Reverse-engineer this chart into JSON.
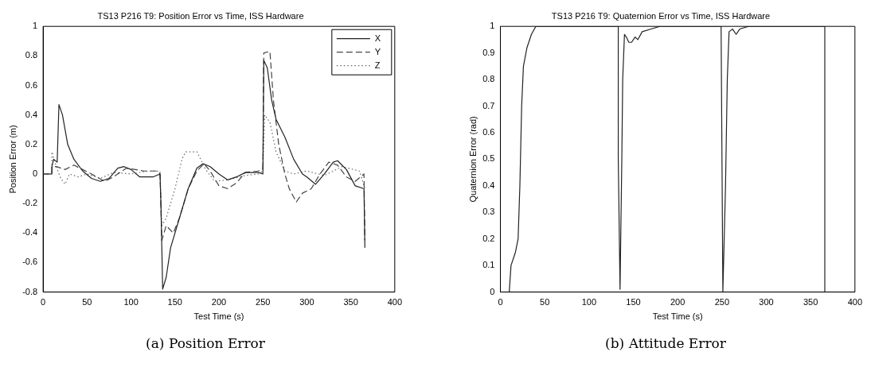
{
  "chart_data": [
    {
      "type": "line",
      "title": "TS13 P216 T9: Position Error vs Time, ISS Hardware",
      "xlabel": "Test Time (s)",
      "ylabel": "Position Error (m)",
      "annotations": [
        "(a) Position Error"
      ],
      "xlim": [
        0,
        400
      ],
      "xticks": [
        0,
        50,
        100,
        150,
        200,
        250,
        300,
        350,
        400
      ],
      "ylim": [
        -0.8,
        1
      ],
      "yticks": [
        -0.8,
        -0.6,
        -0.4,
        -0.2,
        0,
        0.2,
        0.4,
        0.6,
        0.8,
        1
      ],
      "legend": "top right",
      "grid": false,
      "marker": "none",
      "series": [
        {
          "name": "X",
          "color": "#222222",
          "line_style": "solid",
          "x": [
            0,
            10,
            10,
            12,
            16,
            18,
            22,
            28,
            35,
            45,
            55,
            65,
            75,
            85,
            92,
            100,
            110,
            125,
            133,
            134,
            136,
            140,
            145,
            155,
            165,
            175,
            182,
            190,
            200,
            210,
            220,
            230,
            245,
            250,
            251,
            255,
            260,
            265,
            275,
            285,
            295,
            300,
            310,
            320,
            330,
            335,
            345,
            355,
            365,
            366
          ],
          "values": [
            0,
            0,
            0.05,
            0.1,
            0.08,
            0.47,
            0.4,
            0.2,
            0.1,
            0.02,
            -0.03,
            -0.05,
            -0.03,
            0.04,
            0.05,
            0.03,
            -0.02,
            -0.02,
            0,
            -0.2,
            -0.78,
            -0.7,
            -0.5,
            -0.3,
            -0.1,
            0.04,
            0.07,
            0.05,
            0,
            -0.04,
            -0.02,
            0.01,
            0.01,
            0,
            0.77,
            0.72,
            0.5,
            0.37,
            0.25,
            0.1,
            0,
            -0.02,
            -0.07,
            0,
            0.08,
            0.09,
            0.03,
            -0.08,
            -0.1,
            -0.5
          ]
        },
        {
          "name": "Y",
          "color": "#444444",
          "line_style": "dashed",
          "x": [
            0,
            10,
            10,
            15,
            25,
            35,
            45,
            55,
            70,
            80,
            95,
            115,
            130,
            133,
            135,
            140,
            148,
            155,
            165,
            175,
            183,
            190,
            200,
            210,
            220,
            230,
            245,
            250,
            251,
            258,
            262,
            268,
            275,
            280,
            288,
            295,
            305,
            315,
            325,
            335,
            345,
            355,
            365,
            366
          ],
          "values": [
            0,
            0,
            0.05,
            0.05,
            0.03,
            0.06,
            0.03,
            0,
            -0.05,
            -0.02,
            0.04,
            0.02,
            0.02,
            0,
            -0.45,
            -0.35,
            -0.4,
            -0.3,
            -0.1,
            0.02,
            0.07,
            0.02,
            -0.08,
            -0.1,
            -0.06,
            0.01,
            0.02,
            0.04,
            0.82,
            0.83,
            0.5,
            0.2,
            0,
            -0.1,
            -0.19,
            -0.13,
            -0.1,
            0,
            0.08,
            0.06,
            -0.02,
            -0.05,
            0,
            -0.45
          ]
        },
        {
          "name": "Z",
          "color": "#666666",
          "line_style": "dotted",
          "x": [
            0,
            10,
            10,
            15,
            20,
            25,
            30,
            40,
            50,
            65,
            80,
            100,
            120,
            133,
            135,
            140,
            150,
            158,
            162,
            175,
            185,
            195,
            210,
            230,
            245,
            250,
            252,
            258,
            265,
            275,
            285,
            300,
            320,
            340,
            360,
            366
          ],
          "values": [
            0,
            0,
            0.15,
            0.05,
            -0.03,
            -0.07,
            0,
            -0.02,
            0,
            -0.03,
            0.01,
            0,
            0.02,
            0.02,
            -0.35,
            -0.3,
            -0.1,
            0.1,
            0.15,
            0.15,
            0.03,
            -0.05,
            -0.04,
            -0.01,
            0,
            0.02,
            0.4,
            0.35,
            0.15,
            0.02,
            0,
            0.02,
            -0.01,
            0.05,
            0.02,
            -0.1
          ]
        }
      ]
    },
    {
      "type": "line",
      "title": "TS13 P216 T9: Quaternion Error vs Time, ISS Hardware",
      "xlabel": "Test Time (s)",
      "ylabel": "Quaternion Error (rad)",
      "annotations": [
        "(b) Attitude Error"
      ],
      "xlim": [
        0,
        400
      ],
      "xticks": [
        0,
        50,
        100,
        150,
        200,
        250,
        300,
        350,
        400
      ],
      "ylim": [
        0,
        1
      ],
      "yticks": [
        0,
        0.1,
        0.2,
        0.3,
        0.4,
        0.5,
        0.6,
        0.7,
        0.8,
        0.9,
        1
      ],
      "legend": false,
      "grid": false,
      "marker": "none",
      "series": [
        {
          "color": "#222222",
          "line_style": "solid",
          "x": [
            10,
            12,
            17,
            20,
            22,
            24,
            26,
            30,
            35,
            40,
            133,
            133,
            135,
            137,
            138,
            140,
            142,
            145,
            148,
            152,
            155,
            160,
            170,
            180,
            249,
            250,
            251,
            254,
            256,
            258,
            262,
            266,
            270,
            280,
            366,
            366
          ],
          "values": [
            0,
            0.1,
            0.15,
            0.2,
            0.4,
            0.7,
            0.85,
            0.92,
            0.97,
            1,
            1,
            0.5,
            0.01,
            0.5,
            0.8,
            0.97,
            0.96,
            0.94,
            0.94,
            0.96,
            0.95,
            0.98,
            0.99,
            1,
            1,
            0.5,
            0,
            0.4,
            0.8,
            0.98,
            0.99,
            0.97,
            0.99,
            1,
            1,
            0
          ]
        }
      ]
    }
  ]
}
